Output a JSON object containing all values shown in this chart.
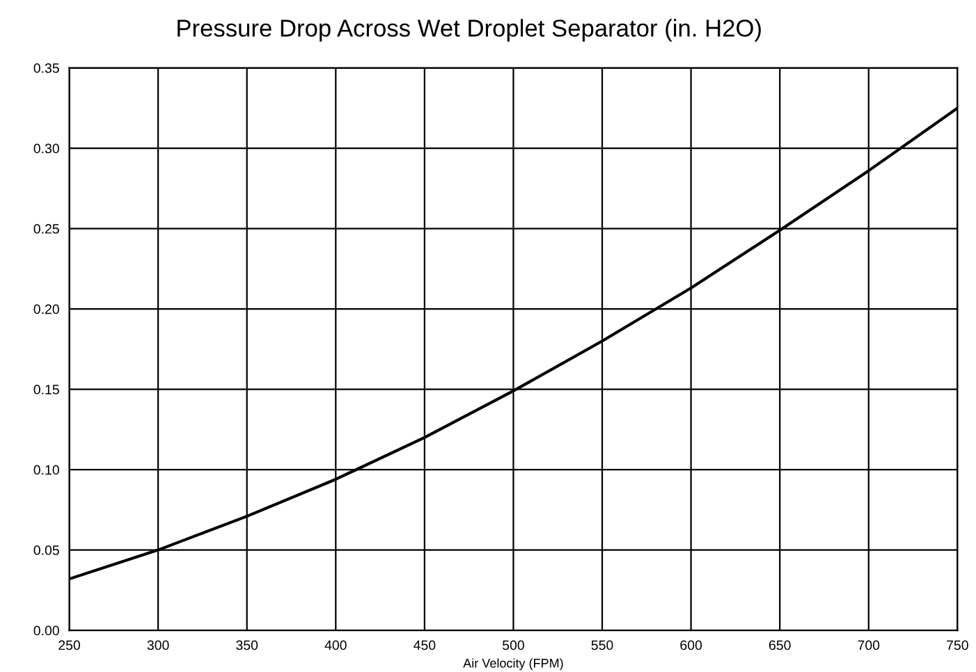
{
  "chart_data": {
    "type": "line",
    "title": "Pressure Drop Across Wet Droplet Separator (in. H2O)",
    "xlabel": "Air Velocity (FPM)",
    "x": [
      250,
      300,
      350,
      400,
      450,
      500,
      550,
      600,
      650,
      700,
      750
    ],
    "series": [
      {
        "color": "#000000",
        "values": [
          0.032,
          0.05,
          0.071,
          0.094,
          0.12,
          0.149,
          0.18,
          0.213,
          0.249,
          0.286,
          0.325
        ]
      }
    ],
    "xlim": [
      250,
      750
    ],
    "xticks": [
      250,
      300,
      350,
      400,
      450,
      500,
      550,
      600,
      650,
      700,
      750
    ],
    "ylim": [
      0,
      0.35
    ],
    "yticks": [
      {
        "value": 0,
        "label": "0.00"
      },
      {
        "value": 0.05,
        "label": "0.05"
      },
      {
        "value": 0.1,
        "label": "0.10"
      },
      {
        "value": 0.15,
        "label": "0.15"
      },
      {
        "value": 0.2,
        "label": "0.20"
      },
      {
        "value": 0.25,
        "label": "0.25"
      },
      {
        "value": 0.3,
        "label": "0.30"
      },
      {
        "value": 0.35,
        "label": "0.35"
      }
    ],
    "grid": true,
    "marker": "none",
    "line_style": "solid"
  }
}
